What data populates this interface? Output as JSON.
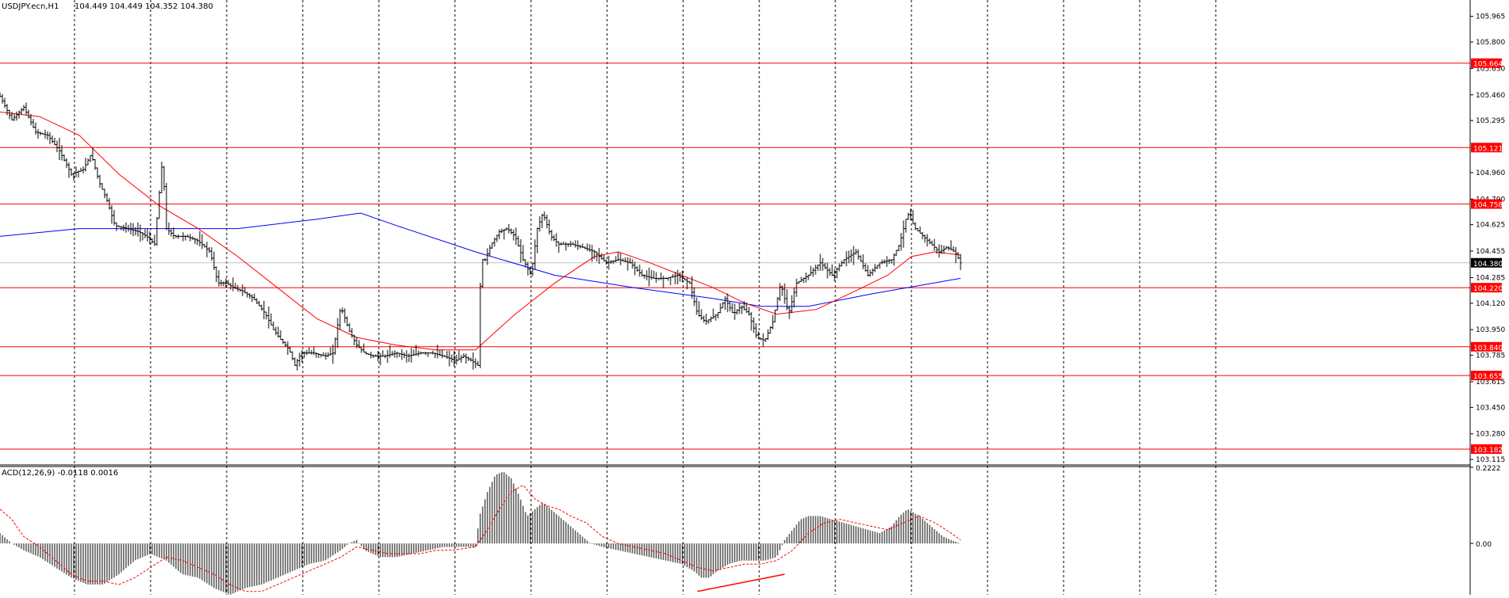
{
  "header": {
    "symbol": "USDJPY.ecn,H1",
    "ohlc": "104.449 104.449 104.352 104.380"
  },
  "indicator_header": "ACD(12,26,9) -0.0118 0.0016",
  "colors": {
    "background": "#ffffff",
    "grid": "#000000",
    "price_line": "#000000",
    "fast_ma": "#ff0000",
    "slow_ma": "#0000ff",
    "level_line": "#ff0000",
    "level_label_bg": "#ff0000",
    "current_price_label_bg": "#000000",
    "macd_signal": "#ff0000"
  },
  "chart_data": [
    {
      "type": "candlestick",
      "title": "USDJPY.ecn,H1",
      "ylim": [
        103.08,
        106.07
      ],
      "y_ticks": [
        "105.965",
        "105.800",
        "105.630",
        "105.460",
        "105.295",
        "104.960",
        "104.790",
        "104.625",
        "104.455",
        "104.285",
        "104.120",
        "103.950",
        "103.785",
        "103.615",
        "103.450",
        "103.280",
        "103.115"
      ],
      "grid": "dashed vertical",
      "horizontal_levels": [
        105.664,
        105.121,
        104.758,
        104.22,
        103.84,
        103.655,
        103.182
      ],
      "level_labels": [
        "105.664",
        "105.121",
        "104.758",
        "104.220",
        "103.840",
        "103.655",
        "103.182"
      ],
      "current_price": 104.38,
      "current_price_label": "104.380",
      "price_path": [
        [
          0,
          105.45
        ],
        [
          15,
          105.3
        ],
        [
          30,
          105.38
        ],
        [
          45,
          105.22
        ],
        [
          60,
          105.2
        ],
        [
          75,
          105.1
        ],
        [
          90,
          104.95
        ],
        [
          105,
          104.98
        ],
        [
          115,
          105.08
        ],
        [
          125,
          104.9
        ],
        [
          135,
          104.78
        ],
        [
          145,
          104.62
        ],
        [
          160,
          104.6
        ],
        [
          175,
          104.58
        ],
        [
          185,
          104.55
        ],
        [
          195,
          104.5
        ],
        [
          205,
          105.05
        ],
        [
          210,
          104.6
        ],
        [
          220,
          104.55
        ],
        [
          235,
          104.55
        ],
        [
          250,
          104.52
        ],
        [
          265,
          104.45
        ],
        [
          275,
          104.25
        ],
        [
          285,
          104.25
        ],
        [
          295,
          104.22
        ],
        [
          305,
          104.2
        ],
        [
          320,
          104.15
        ],
        [
          335,
          104.05
        ],
        [
          345,
          103.95
        ],
        [
          355,
          103.88
        ],
        [
          365,
          103.82
        ],
        [
          372,
          103.72
        ],
        [
          380,
          103.8
        ],
        [
          395,
          103.8
        ],
        [
          410,
          103.78
        ],
        [
          420,
          103.8
        ],
        [
          430,
          104.1
        ],
        [
          440,
          103.95
        ],
        [
          450,
          103.85
        ],
        [
          460,
          103.8
        ],
        [
          470,
          103.78
        ],
        [
          485,
          103.78
        ],
        [
          500,
          103.8
        ],
        [
          515,
          103.78
        ],
        [
          530,
          103.8
        ],
        [
          545,
          103.8
        ],
        [
          560,
          103.78
        ],
        [
          575,
          103.75
        ],
        [
          585,
          103.78
        ],
        [
          595,
          103.75
        ],
        [
          603,
          103.72
        ],
        [
          607,
          104.4
        ],
        [
          612,
          104.4
        ],
        [
          620,
          104.5
        ],
        [
          630,
          104.58
        ],
        [
          640,
          104.6
        ],
        [
          650,
          104.55
        ],
        [
          660,
          104.4
        ],
        [
          670,
          104.3
        ],
        [
          678,
          104.6
        ],
        [
          685,
          104.7
        ],
        [
          695,
          104.55
        ],
        [
          705,
          104.5
        ],
        [
          720,
          104.5
        ],
        [
          735,
          104.48
        ],
        [
          750,
          104.45
        ],
        [
          765,
          104.38
        ],
        [
          780,
          104.4
        ],
        [
          795,
          104.38
        ],
        [
          810,
          104.3
        ],
        [
          825,
          104.28
        ],
        [
          840,
          104.28
        ],
        [
          855,
          104.3
        ],
        [
          870,
          104.25
        ],
        [
          880,
          104.05
        ],
        [
          890,
          104.0
        ],
        [
          905,
          104.05
        ],
        [
          915,
          104.15
        ],
        [
          925,
          104.05
        ],
        [
          935,
          104.1
        ],
        [
          945,
          104.05
        ],
        [
          955,
          103.9
        ],
        [
          965,
          103.88
        ],
        [
          975,
          104.0
        ],
        [
          985,
          104.25
        ],
        [
          995,
          104.05
        ],
        [
          1005,
          104.25
        ],
        [
          1020,
          104.3
        ],
        [
          1035,
          104.38
        ],
        [
          1050,
          104.3
        ],
        [
          1065,
          104.4
        ],
        [
          1080,
          104.45
        ],
        [
          1095,
          104.3
        ],
        [
          1110,
          104.38
        ],
        [
          1125,
          104.4
        ],
        [
          1135,
          104.5
        ],
        [
          1145,
          104.7
        ],
        [
          1155,
          104.6
        ],
        [
          1165,
          104.55
        ],
        [
          1175,
          104.5
        ],
        [
          1185,
          104.45
        ],
        [
          1195,
          104.48
        ],
        [
          1205,
          104.45
        ],
        [
          1212,
          104.38
        ]
      ],
      "series": [
        {
          "role": "fast_ma",
          "color": "#ff0000",
          "points": [
            [
              0,
              105.35
            ],
            [
              50,
              105.32
            ],
            [
              100,
              105.2
            ],
            [
              150,
              104.95
            ],
            [
              200,
              104.75
            ],
            [
              250,
              104.6
            ],
            [
              300,
              104.42
            ],
            [
              350,
              104.22
            ],
            [
              400,
              104.02
            ],
            [
              450,
              103.9
            ],
            [
              500,
              103.85
            ],
            [
              550,
              103.82
            ],
            [
              600,
              103.82
            ],
            [
              650,
              104.05
            ],
            [
              700,
              104.25
            ],
            [
              750,
              104.42
            ],
            [
              780,
              104.45
            ],
            [
              820,
              104.38
            ],
            [
              860,
              104.3
            ],
            [
              900,
              104.22
            ],
            [
              940,
              104.12
            ],
            [
              980,
              104.05
            ],
            [
              1030,
              104.08
            ],
            [
              1080,
              104.2
            ],
            [
              1120,
              104.3
            ],
            [
              1150,
              104.42
            ],
            [
              1180,
              104.45
            ],
            [
              1212,
              104.43
            ]
          ]
        },
        {
          "role": "slow_ma",
          "color": "#0000ff",
          "points": [
            [
              0,
              104.55
            ],
            [
              100,
              104.6
            ],
            [
              200,
              104.6
            ],
            [
              300,
              104.6
            ],
            [
              400,
              104.66
            ],
            [
              455,
              104.7
            ],
            [
              500,
              104.62
            ],
            [
              600,
              104.45
            ],
            [
              700,
              104.3
            ],
            [
              800,
              104.22
            ],
            [
              900,
              104.15
            ],
            [
              960,
              104.1
            ],
            [
              1020,
              104.1
            ],
            [
              1100,
              104.18
            ],
            [
              1212,
              104.28
            ]
          ]
        }
      ]
    },
    {
      "type": "bar",
      "title": "ACD(12,26,9) -0.0118 0.0016",
      "ylim": [
        -0.15,
        0.2222
      ],
      "y_ticks": [
        "0.2222",
        "0.00"
      ],
      "histogram_envelope": [
        [
          0,
          0.03
        ],
        [
          15,
          0.0
        ],
        [
          30,
          -0.02
        ],
        [
          50,
          -0.04
        ],
        [
          70,
          -0.07
        ],
        [
          90,
          -0.1
        ],
        [
          110,
          -0.12
        ],
        [
          130,
          -0.12
        ],
        [
          150,
          -0.09
        ],
        [
          170,
          -0.05
        ],
        [
          190,
          -0.03
        ],
        [
          210,
          -0.05
        ],
        [
          230,
          -0.09
        ],
        [
          250,
          -0.1
        ],
        [
          270,
          -0.13
        ],
        [
          290,
          -0.15
        ],
        [
          310,
          -0.13
        ],
        [
          330,
          -0.12
        ],
        [
          350,
          -0.1
        ],
        [
          370,
          -0.08
        ],
        [
          390,
          -0.06
        ],
        [
          410,
          -0.05
        ],
        [
          430,
          -0.02
        ],
        [
          440,
          0.0
        ],
        [
          450,
          0.01
        ],
        [
          460,
          -0.02
        ],
        [
          480,
          -0.04
        ],
        [
          500,
          -0.04
        ],
        [
          520,
          -0.03
        ],
        [
          540,
          -0.02
        ],
        [
          560,
          -0.01
        ],
        [
          580,
          -0.01
        ],
        [
          600,
          -0.01
        ],
        [
          605,
          0.08
        ],
        [
          615,
          0.15
        ],
        [
          625,
          0.2
        ],
        [
          635,
          0.21
        ],
        [
          645,
          0.19
        ],
        [
          655,
          0.14
        ],
        [
          665,
          0.08
        ],
        [
          675,
          0.1
        ],
        [
          685,
          0.12
        ],
        [
          695,
          0.1
        ],
        [
          705,
          0.08
        ],
        [
          715,
          0.06
        ],
        [
          725,
          0.04
        ],
        [
          735,
          0.02
        ],
        [
          745,
          0.0
        ],
        [
          760,
          -0.01
        ],
        [
          780,
          -0.02
        ],
        [
          800,
          -0.03
        ],
        [
          820,
          -0.04
        ],
        [
          840,
          -0.05
        ],
        [
          860,
          -0.06
        ],
        [
          875,
          -0.08
        ],
        [
          885,
          -0.1
        ],
        [
          895,
          -0.1
        ],
        [
          905,
          -0.08
        ],
        [
          920,
          -0.06
        ],
        [
          935,
          -0.05
        ],
        [
          950,
          -0.05
        ],
        [
          965,
          -0.05
        ],
        [
          980,
          -0.04
        ],
        [
          990,
          0.01
        ],
        [
          1000,
          0.04
        ],
        [
          1010,
          0.07
        ],
        [
          1020,
          0.08
        ],
        [
          1035,
          0.08
        ],
        [
          1050,
          0.07
        ],
        [
          1065,
          0.06
        ],
        [
          1080,
          0.05
        ],
        [
          1095,
          0.04
        ],
        [
          1110,
          0.03
        ],
        [
          1125,
          0.05
        ],
        [
          1135,
          0.08
        ],
        [
          1145,
          0.1
        ],
        [
          1160,
          0.08
        ],
        [
          1175,
          0.05
        ],
        [
          1190,
          0.02
        ],
        [
          1200,
          0.01
        ],
        [
          1212,
          0.0
        ]
      ],
      "signal_line": [
        [
          0,
          0.1
        ],
        [
          15,
          0.07
        ],
        [
          30,
          0.02
        ],
        [
          50,
          -0.01
        ],
        [
          70,
          -0.05
        ],
        [
          90,
          -0.09
        ],
        [
          110,
          -0.11
        ],
        [
          130,
          -0.11
        ],
        [
          150,
          -0.12
        ],
        [
          170,
          -0.1
        ],
        [
          190,
          -0.07
        ],
        [
          210,
          -0.04
        ],
        [
          230,
          -0.05
        ],
        [
          250,
          -0.07
        ],
        [
          270,
          -0.09
        ],
        [
          290,
          -0.12
        ],
        [
          310,
          -0.14
        ],
        [
          330,
          -0.14
        ],
        [
          350,
          -0.12
        ],
        [
          370,
          -0.1
        ],
        [
          390,
          -0.08
        ],
        [
          410,
          -0.06
        ],
        [
          430,
          -0.04
        ],
        [
          450,
          -0.01
        ],
        [
          470,
          -0.02
        ],
        [
          490,
          -0.03
        ],
        [
          510,
          -0.03
        ],
        [
          530,
          -0.03
        ],
        [
          550,
          -0.02
        ],
        [
          570,
          -0.02
        ],
        [
          600,
          -0.01
        ],
        [
          615,
          0.04
        ],
        [
          630,
          0.1
        ],
        [
          645,
          0.15
        ],
        [
          660,
          0.17
        ],
        [
          675,
          0.13
        ],
        [
          690,
          0.11
        ],
        [
          705,
          0.1
        ],
        [
          720,
          0.08
        ],
        [
          740,
          0.06
        ],
        [
          760,
          0.02
        ],
        [
          780,
          0.0
        ],
        [
          800,
          -0.01
        ],
        [
          820,
          -0.02
        ],
        [
          840,
          -0.03
        ],
        [
          860,
          -0.05
        ],
        [
          880,
          -0.07
        ],
        [
          900,
          -0.08
        ],
        [
          920,
          -0.07
        ],
        [
          940,
          -0.06
        ],
        [
          960,
          -0.06
        ],
        [
          980,
          -0.05
        ],
        [
          1000,
          -0.02
        ],
        [
          1020,
          0.03
        ],
        [
          1040,
          0.06
        ],
        [
          1060,
          0.07
        ],
        [
          1080,
          0.06
        ],
        [
          1100,
          0.05
        ],
        [
          1120,
          0.04
        ],
        [
          1140,
          0.06
        ],
        [
          1160,
          0.08
        ],
        [
          1180,
          0.06
        ],
        [
          1200,
          0.03
        ],
        [
          1212,
          0.01
        ]
      ],
      "annotation_line": [
        [
          880,
          -0.14
        ],
        [
          990,
          -0.09
        ]
      ]
    }
  ]
}
